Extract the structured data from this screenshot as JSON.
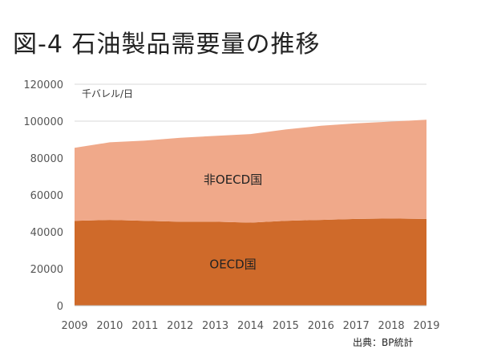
{
  "title": "図-4 石油製品需要量の推移",
  "source": "出典：BP統計",
  "chart_data": {
    "type": "area",
    "stacked": true,
    "unit_label": "千バレル/日",
    "x": [
      2009,
      2010,
      2011,
      2012,
      2013,
      2014,
      2015,
      2016,
      2017,
      2018,
      2019
    ],
    "ylim": [
      0,
      120000
    ],
    "yticks": [
      0,
      20000,
      40000,
      60000,
      80000,
      100000,
      120000
    ],
    "grid": true,
    "series": [
      {
        "name": "OECD国",
        "color": "#cf6a2a",
        "values": [
          46000,
          46500,
          46000,
          45500,
          45500,
          45000,
          46000,
          46500,
          47000,
          47200,
          47000
        ]
      },
      {
        "name": "非OECD国",
        "color": "#f0a98a",
        "values": [
          39500,
          42000,
          43500,
          45500,
          46500,
          48000,
          49500,
          51000,
          51800,
          52600,
          53800
        ]
      }
    ]
  }
}
